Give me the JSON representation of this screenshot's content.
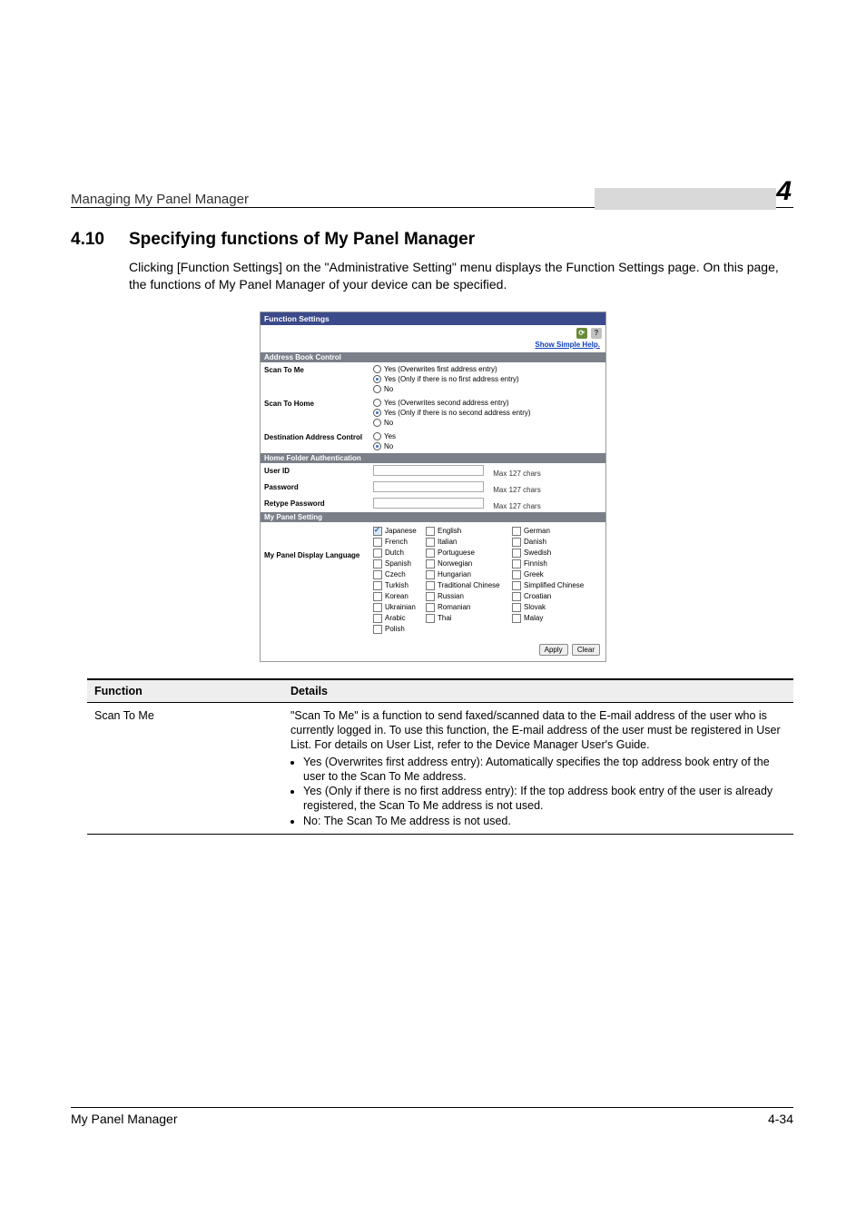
{
  "header": {
    "doc_title": "Managing My Panel Manager",
    "chapter_number": "4"
  },
  "section": {
    "number": "4.10",
    "title": "Specifying functions of My Panel Manager",
    "body": "Clicking [Function Settings] on the \"Administrative Setting\" menu displays the Function Settings page. On this page, the functions of My Panel Manager of your device can be specified."
  },
  "panel": {
    "title": "Function Settings",
    "help_link": "Show Simple Help.",
    "groups": {
      "address_book": {
        "header": "Address Book Control",
        "scan_to_me": {
          "label": "Scan To Me",
          "opts": [
            {
              "text": "Yes (Overwrites first address entry)",
              "selected": false
            },
            {
              "text": "Yes (Only if there is no first address entry)",
              "selected": true
            },
            {
              "text": "No",
              "selected": false
            }
          ]
        },
        "scan_to_home": {
          "label": "Scan To Home",
          "opts": [
            {
              "text": "Yes (Overwrites second address entry)",
              "selected": false
            },
            {
              "text": "Yes (Only if there is no second address entry)",
              "selected": true
            },
            {
              "text": "No",
              "selected": false
            }
          ]
        },
        "dest_addr": {
          "label": "Destination Address Control",
          "opts": [
            {
              "text": "Yes",
              "selected": false
            },
            {
              "text": "No",
              "selected": true
            }
          ]
        }
      },
      "home_folder": {
        "header": "Home Folder Authentication",
        "user_id": {
          "label": "User ID",
          "hint": "Max 127 chars"
        },
        "password": {
          "label": "Password",
          "hint": "Max 127 chars"
        },
        "retype": {
          "label": "Retype Password",
          "hint": "Max 127 chars"
        }
      },
      "my_panel": {
        "header": "My Panel Setting",
        "label": "My Panel Display Language",
        "langs": [
          [
            "Japanese",
            true
          ],
          [
            "English",
            false
          ],
          [
            "German",
            false
          ],
          [
            "French",
            false
          ],
          [
            "Italian",
            false
          ],
          [
            "Danish",
            false
          ],
          [
            "Dutch",
            false
          ],
          [
            "Portuguese",
            false
          ],
          [
            "Swedish",
            false
          ],
          [
            "Spanish",
            false
          ],
          [
            "Norwegian",
            false
          ],
          [
            "Finnish",
            false
          ],
          [
            "Czech",
            false
          ],
          [
            "Hungarian",
            false
          ],
          [
            "Greek",
            false
          ],
          [
            "Turkish",
            false
          ],
          [
            "Traditional Chinese",
            false
          ],
          [
            "Simplified Chinese",
            false
          ],
          [
            "Korean",
            false
          ],
          [
            "Russian",
            false
          ],
          [
            "Croatian",
            false
          ],
          [
            "Ukrainian",
            false
          ],
          [
            "Romanian",
            false
          ],
          [
            "Slovak",
            false
          ],
          [
            "Arabic",
            false
          ],
          [
            "Thai",
            false
          ],
          [
            "Malay",
            false
          ],
          [
            "Polish",
            false
          ]
        ]
      }
    },
    "buttons": {
      "apply": "Apply",
      "clear": "Clear"
    }
  },
  "table": {
    "head": {
      "col1": "Function",
      "col2": "Details"
    },
    "row1": {
      "func": "Scan To Me",
      "desc_p1": "\"Scan To Me\" is a function to send faxed/scanned data to the E-mail address of the user who is currently logged in. To use this function, the E-mail address of the user must be registered in User List. For details on User List, refer to the Device Manager User's Guide.",
      "b1": "Yes (Overwrites first address entry): Automatically specifies the top address book entry of the user to the Scan To Me address.",
      "b2": "Yes (Only if there is no first address entry): If the top address book entry of the user is already registered, the Scan To Me address is not used.",
      "b3": "No: The Scan To Me address is not used."
    }
  },
  "footer": {
    "left": "My Panel Manager",
    "right": "4-34"
  },
  "colors": {
    "panel_header": "#3a4a8a",
    "subheader": "#7a7f88",
    "link": "#1040c0",
    "chapter_tab": "#d9d9d9"
  }
}
